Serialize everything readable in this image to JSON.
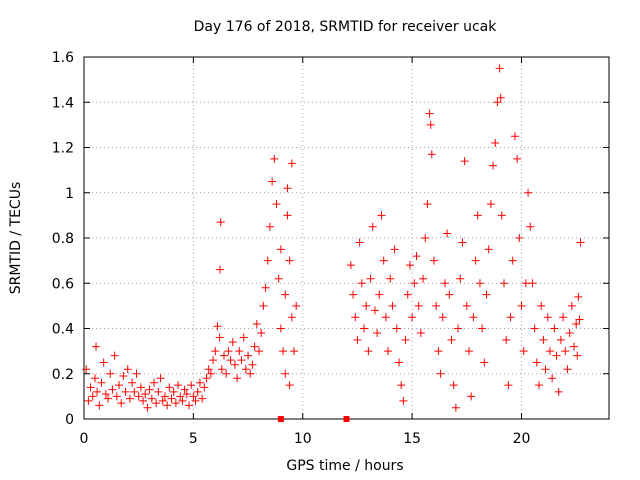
{
  "chart_data": {
    "type": "scatter",
    "title": "Day 176 of 2018, SRMTID for receiver ucak",
    "xlabel": "GPS time / hours",
    "ylabel": "SRMTID / TECUs",
    "xlim": [
      0,
      24
    ],
    "ylim": [
      0,
      1.6
    ],
    "x_ticks": [
      0,
      5,
      10,
      15,
      20
    ],
    "y_ticks": [
      0,
      0.2,
      0.4,
      0.6,
      0.8,
      1.0,
      1.2,
      1.4,
      1.6
    ],
    "x_tick_labels": [
      "0",
      "5",
      "10",
      "15",
      "20"
    ],
    "y_tick_labels": [
      "0",
      "0.2",
      "0.4",
      "0.6",
      "0.8",
      "1",
      "1.2",
      "1.4",
      "1.6"
    ],
    "grid": true,
    "marker": "plus",
    "color": "#ff0000",
    "series": [
      {
        "name": "SRMTID",
        "points": [
          [
            0.1,
            0.22
          ],
          [
            0.2,
            0.08
          ],
          [
            0.3,
            0.14
          ],
          [
            0.4,
            0.1
          ],
          [
            0.5,
            0.18
          ],
          [
            0.55,
            0.32
          ],
          [
            0.6,
            0.12
          ],
          [
            0.7,
            0.06
          ],
          [
            0.8,
            0.16
          ],
          [
            0.9,
            0.25
          ],
          [
            1.0,
            0.11
          ],
          [
            1.1,
            0.09
          ],
          [
            1.2,
            0.2
          ],
          [
            1.3,
            0.13
          ],
          [
            1.4,
            0.28
          ],
          [
            1.5,
            0.1
          ],
          [
            1.6,
            0.15
          ],
          [
            1.7,
            0.07
          ],
          [
            1.8,
            0.19
          ],
          [
            1.9,
            0.12
          ],
          [
            2.0,
            0.22
          ],
          [
            2.1,
            0.09
          ],
          [
            2.2,
            0.16
          ],
          [
            2.3,
            0.12
          ],
          [
            2.4,
            0.2
          ],
          [
            2.5,
            0.1
          ],
          [
            2.6,
            0.14
          ],
          [
            2.7,
            0.08
          ],
          [
            2.8,
            0.11
          ],
          [
            2.9,
            0.05
          ],
          [
            3.0,
            0.13
          ],
          [
            3.1,
            0.09
          ],
          [
            3.2,
            0.16
          ],
          [
            3.3,
            0.07
          ],
          [
            3.4,
            0.12
          ],
          [
            3.5,
            0.18
          ],
          [
            3.6,
            0.08
          ],
          [
            3.7,
            0.1
          ],
          [
            3.8,
            0.06
          ],
          [
            3.9,
            0.14
          ],
          [
            4.0,
            0.09
          ],
          [
            4.1,
            0.12
          ],
          [
            4.2,
            0.07
          ],
          [
            4.3,
            0.15
          ],
          [
            4.4,
            0.1
          ],
          [
            4.5,
            0.08
          ],
          [
            4.6,
            0.13
          ],
          [
            4.7,
            0.11
          ],
          [
            4.8,
            0.06
          ],
          [
            4.9,
            0.15
          ],
          [
            5.0,
            0.1
          ],
          [
            5.1,
            0.08
          ],
          [
            5.2,
            0.12
          ],
          [
            5.3,
            0.16
          ],
          [
            5.4,
            0.09
          ],
          [
            5.5,
            0.14
          ],
          [
            5.6,
            0.18
          ],
          [
            5.7,
            0.22
          ],
          [
            5.8,
            0.2
          ],
          [
            5.9,
            0.26
          ],
          [
            6.0,
            0.3
          ],
          [
            6.1,
            0.41
          ],
          [
            6.2,
            0.36
          ],
          [
            6.22,
            0.66
          ],
          [
            6.25,
            0.87
          ],
          [
            6.3,
            0.22
          ],
          [
            6.4,
            0.28
          ],
          [
            6.5,
            0.2
          ],
          [
            6.6,
            0.3
          ],
          [
            6.7,
            0.26
          ],
          [
            6.8,
            0.34
          ],
          [
            6.9,
            0.24
          ],
          [
            7.0,
            0.18
          ],
          [
            7.1,
            0.3
          ],
          [
            7.2,
            0.26
          ],
          [
            7.3,
            0.36
          ],
          [
            7.4,
            0.22
          ],
          [
            7.5,
            0.28
          ],
          [
            7.6,
            0.2
          ],
          [
            7.7,
            0.24
          ],
          [
            7.8,
            0.32
          ],
          [
            7.9,
            0.42
          ],
          [
            8.0,
            0.3
          ],
          [
            8.1,
            0.38
          ],
          [
            8.2,
            0.5
          ],
          [
            8.3,
            0.58
          ],
          [
            8.4,
            0.7
          ],
          [
            8.5,
            0.85
          ],
          [
            8.6,
            1.05
          ],
          [
            8.7,
            1.15
          ],
          [
            8.8,
            0.95
          ],
          [
            8.9,
            0.62
          ],
          [
            9.0,
            0.4
          ],
          [
            9.1,
            0.3
          ],
          [
            9.2,
            0.55
          ],
          [
            9.3,
            0.9
          ],
          [
            9.4,
            0.7
          ],
          [
            9.5,
            0.45
          ],
          [
            9.6,
            0.3
          ],
          [
            9.7,
            0.5
          ],
          [
            9.5,
            1.13
          ],
          [
            9.3,
            1.02
          ],
          [
            9.0,
            0.75
          ],
          [
            9.2,
            0.2
          ],
          [
            9.4,
            0.15
          ],
          [
            12.2,
            0.68
          ],
          [
            12.3,
            0.55
          ],
          [
            12.4,
            0.45
          ],
          [
            12.5,
            0.35
          ],
          [
            12.6,
            0.78
          ],
          [
            12.7,
            0.6
          ],
          [
            12.8,
            0.4
          ],
          [
            12.9,
            0.5
          ],
          [
            13.0,
            0.3
          ],
          [
            13.1,
            0.62
          ],
          [
            13.2,
            0.85
          ],
          [
            13.3,
            0.48
          ],
          [
            13.4,
            0.38
          ],
          [
            13.5,
            0.55
          ],
          [
            13.6,
            0.9
          ],
          [
            13.7,
            0.7
          ],
          [
            13.8,
            0.45
          ],
          [
            13.9,
            0.3
          ],
          [
            14.0,
            0.62
          ],
          [
            14.1,
            0.5
          ],
          [
            14.2,
            0.75
          ],
          [
            14.3,
            0.4
          ],
          [
            14.4,
            0.25
          ],
          [
            14.5,
            0.15
          ],
          [
            14.6,
            0.08
          ],
          [
            14.7,
            0.35
          ],
          [
            14.8,
            0.55
          ],
          [
            14.9,
            0.68
          ],
          [
            15.0,
            0.45
          ],
          [
            15.1,
            0.6
          ],
          [
            15.2,
            0.72
          ],
          [
            15.3,
            0.5
          ],
          [
            15.4,
            0.38
          ],
          [
            15.5,
            0.62
          ],
          [
            15.6,
            0.8
          ],
          [
            15.7,
            0.95
          ],
          [
            15.8,
            1.35
          ],
          [
            15.85,
            1.3
          ],
          [
            15.9,
            1.17
          ],
          [
            16.0,
            0.7
          ],
          [
            16.1,
            0.5
          ],
          [
            16.2,
            0.3
          ],
          [
            16.3,
            0.2
          ],
          [
            16.4,
            0.45
          ],
          [
            16.5,
            0.6
          ],
          [
            16.6,
            0.82
          ],
          [
            16.7,
            0.55
          ],
          [
            16.8,
            0.35
          ],
          [
            16.9,
            0.15
          ],
          [
            17.0,
            0.05
          ],
          [
            17.1,
            0.4
          ],
          [
            17.2,
            0.62
          ],
          [
            17.3,
            0.78
          ],
          [
            17.4,
            1.14
          ],
          [
            17.5,
            0.5
          ],
          [
            17.6,
            0.3
          ],
          [
            17.7,
            0.1
          ],
          [
            17.8,
            0.45
          ],
          [
            17.9,
            0.7
          ],
          [
            18.0,
            0.9
          ],
          [
            18.1,
            0.6
          ],
          [
            18.2,
            0.4
          ],
          [
            18.3,
            0.25
          ],
          [
            18.4,
            0.55
          ],
          [
            18.5,
            0.75
          ],
          [
            18.6,
            0.95
          ],
          [
            18.7,
            1.12
          ],
          [
            18.8,
            1.22
          ],
          [
            18.9,
            1.4
          ],
          [
            19.0,
            1.55
          ],
          [
            19.05,
            1.42
          ],
          [
            19.1,
            0.9
          ],
          [
            19.2,
            0.6
          ],
          [
            19.3,
            0.35
          ],
          [
            19.4,
            0.15
          ],
          [
            19.5,
            0.45
          ],
          [
            19.6,
            0.7
          ],
          [
            19.7,
            1.25
          ],
          [
            19.8,
            1.15
          ],
          [
            19.9,
            0.8
          ],
          [
            20.0,
            0.5
          ],
          [
            20.1,
            0.3
          ],
          [
            20.2,
            0.6
          ],
          [
            20.3,
            1.0
          ],
          [
            20.4,
            0.85
          ],
          [
            20.5,
            0.6
          ],
          [
            20.6,
            0.4
          ],
          [
            20.7,
            0.25
          ],
          [
            20.8,
            0.15
          ],
          [
            20.9,
            0.5
          ],
          [
            21.0,
            0.35
          ],
          [
            21.1,
            0.22
          ],
          [
            21.2,
            0.45
          ],
          [
            21.3,
            0.3
          ],
          [
            21.4,
            0.18
          ],
          [
            21.5,
            0.4
          ],
          [
            21.6,
            0.28
          ],
          [
            21.7,
            0.12
          ],
          [
            21.8,
            0.35
          ],
          [
            21.9,
            0.45
          ],
          [
            22.0,
            0.3
          ],
          [
            22.1,
            0.22
          ],
          [
            22.2,
            0.38
          ],
          [
            22.3,
            0.5
          ],
          [
            22.4,
            0.32
          ],
          [
            22.5,
            0.42
          ],
          [
            22.6,
            0.54
          ],
          [
            22.7,
            0.78
          ],
          [
            22.65,
            0.44
          ],
          [
            22.55,
            0.28
          ]
        ]
      }
    ],
    "data_gap_markers": [
      9.0,
      12.0
    ]
  }
}
